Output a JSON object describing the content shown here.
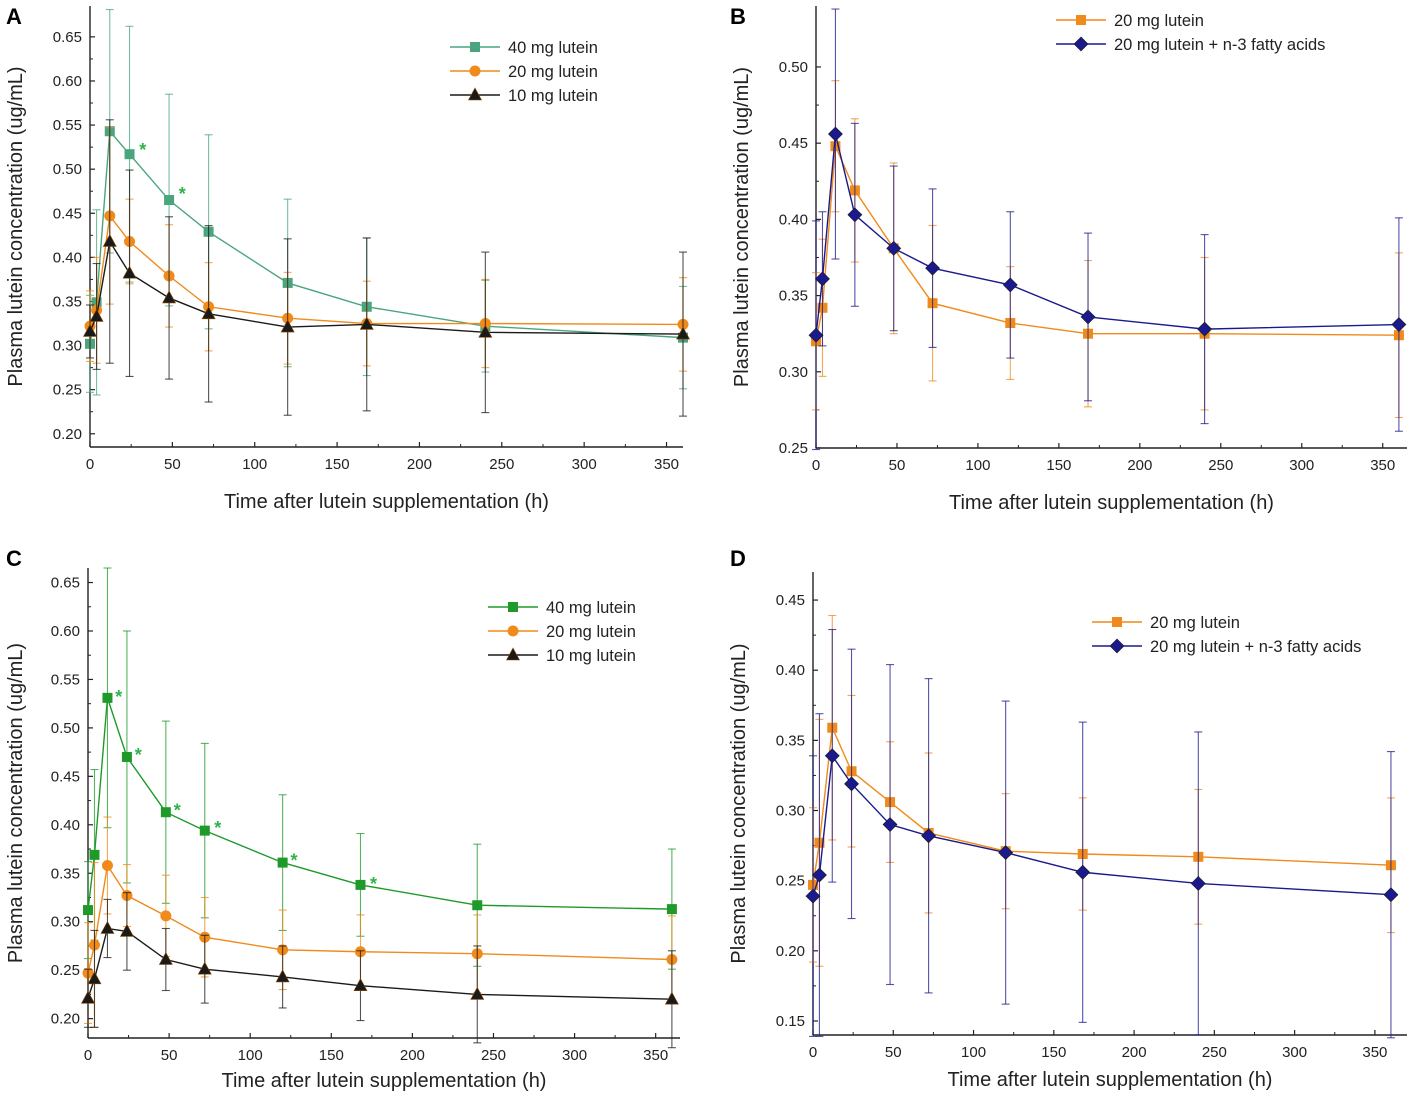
{
  "figure": {
    "x_title": "Time after lutein supplementation (h)",
    "y_title": "Plasma lutein concentration (ug/mL)"
  },
  "colors": {
    "green_a": "#4aa57e",
    "green_c": "#1f9a2a",
    "orange": "#f08a1a",
    "black": "#1a1a1a",
    "navy": "#1a1a8c",
    "star_green": "#2db34a"
  },
  "chart_data": [
    {
      "id": "A",
      "type": "line",
      "panel_label": "A",
      "xlabel": "Time after lutein supplementation (h)",
      "ylabel": "Plasma lutein concentration (ug/mL)",
      "xlim": [
        0,
        360
      ],
      "ylim": [
        0.185,
        0.685
      ],
      "xticks": [
        0,
        50,
        100,
        150,
        200,
        250,
        300,
        350
      ],
      "yticks": [
        0.2,
        0.25,
        0.3,
        0.35,
        0.4,
        0.45,
        0.5,
        0.55,
        0.6,
        0.65
      ],
      "x": [
        0,
        4,
        12,
        24,
        48,
        72,
        120,
        168,
        240,
        360
      ],
      "legend_position": "top-right",
      "series": [
        {
          "name": "40 mg lutein",
          "marker": "square",
          "color": "green_a",
          "values": [
            0.302,
            0.349,
            0.543,
            0.517,
            0.465,
            0.429,
            0.371,
            0.344,
            0.322,
            0.309
          ],
          "errors": [
            0.055,
            0.105,
            0.138,
            0.145,
            0.12,
            0.11,
            0.095,
            0.078,
            0.052,
            0.058
          ]
        },
        {
          "name": "20 mg lutein",
          "marker": "circle",
          "color": "orange",
          "values": [
            0.322,
            0.34,
            0.447,
            0.418,
            0.379,
            0.344,
            0.331,
            0.325,
            0.325,
            0.324
          ],
          "errors": [
            0.04,
            0.06,
            0.1,
            0.048,
            0.058,
            0.05,
            0.052,
            0.048,
            0.05,
            0.053
          ]
        },
        {
          "name": "10 mg lutein",
          "marker": "triangle",
          "color": "black",
          "values": [
            0.316,
            0.333,
            0.418,
            0.382,
            0.354,
            0.336,
            0.321,
            0.324,
            0.315,
            0.313
          ],
          "errors": [
            0.03,
            0.06,
            0.138,
            0.117,
            0.092,
            0.1,
            0.1,
            0.098,
            0.091,
            0.093
          ]
        }
      ],
      "annotations": [
        {
          "text": "*",
          "x": 32,
          "y": 0.524
        },
        {
          "text": "*",
          "x": 56,
          "y": 0.474
        }
      ]
    },
    {
      "id": "B",
      "type": "line",
      "panel_label": "B",
      "xlabel": "Time after lutein supplementation (h)",
      "ylabel": "Plasma lutein concentration (ug/mL)",
      "xlim": [
        0,
        365
      ],
      "ylim": [
        0.25,
        0.54
      ],
      "xticks": [
        0,
        50,
        100,
        150,
        200,
        250,
        300,
        350
      ],
      "yticks": [
        0.25,
        0.3,
        0.35,
        0.4,
        0.45,
        0.5
      ],
      "x": [
        0,
        4,
        12,
        24,
        48,
        72,
        120,
        168,
        240,
        360
      ],
      "legend_position": "top-center",
      "series": [
        {
          "name": "20 mg lutein",
          "marker": "square",
          "color": "orange",
          "values": [
            0.32,
            0.342,
            0.448,
            0.419,
            0.381,
            0.345,
            0.332,
            0.325,
            0.325,
            0.324
          ],
          "errors": [
            0.045,
            0.045,
            0.043,
            0.047,
            0.056,
            0.051,
            0.037,
            0.048,
            0.05,
            0.054
          ]
        },
        {
          "name": "20 mg lutein + n-3 fatty acids",
          "marker": "diamond",
          "color": "navy",
          "values": [
            0.324,
            0.361,
            0.456,
            0.403,
            0.381,
            0.368,
            0.357,
            0.336,
            0.328,
            0.331
          ],
          "errors": [
            0.075,
            0.044,
            0.082,
            0.06,
            0.054,
            0.052,
            0.048,
            0.055,
            0.062,
            0.07
          ]
        }
      ]
    },
    {
      "id": "C",
      "type": "line",
      "panel_label": "C",
      "xlabel": "Time after lutein supplementation (h)",
      "ylabel": "Plasma lutein concentration (ug/mL)",
      "xlim": [
        0,
        365
      ],
      "ylim": [
        0.18,
        0.665
      ],
      "xticks": [
        0,
        50,
        100,
        150,
        200,
        250,
        300,
        350
      ],
      "yticks": [
        0.2,
        0.25,
        0.3,
        0.35,
        0.4,
        0.45,
        0.5,
        0.55,
        0.6,
        0.65
      ],
      "x": [
        0,
        4,
        12,
        24,
        48,
        72,
        120,
        168,
        240,
        360
      ],
      "legend_position": "top-right",
      "series": [
        {
          "name": "40 mg lutein",
          "marker": "square",
          "color": "green_c",
          "values": [
            0.312,
            0.369,
            0.531,
            0.47,
            0.413,
            0.394,
            0.361,
            0.338,
            0.317,
            0.313
          ],
          "errors": [
            0.05,
            0.088,
            0.134,
            0.13,
            0.094,
            0.09,
            0.07,
            0.053,
            0.063,
            0.062
          ]
        },
        {
          "name": "20 mg lutein",
          "marker": "circle",
          "color": "orange",
          "values": [
            0.247,
            0.276,
            0.358,
            0.327,
            0.306,
            0.284,
            0.271,
            0.269,
            0.267,
            0.261
          ],
          "errors": [
            0.052,
            0.085,
            0.05,
            0.032,
            0.042,
            0.041,
            0.041,
            0.038,
            0.04,
            0.045
          ]
        },
        {
          "name": "10 mg lutein",
          "marker": "triangle",
          "color": "black",
          "values": [
            0.221,
            0.241,
            0.293,
            0.29,
            0.261,
            0.251,
            0.243,
            0.234,
            0.225,
            0.22
          ],
          "errors": [
            0.03,
            0.05,
            0.03,
            0.04,
            0.032,
            0.035,
            0.032,
            0.036,
            0.05,
            0.05
          ]
        }
      ],
      "annotations": [
        {
          "text": "*",
          "x": 19,
          "y": 0.534
        },
        {
          "text": "*",
          "x": 31,
          "y": 0.474
        },
        {
          "text": "*",
          "x": 55,
          "y": 0.417
        },
        {
          "text": "*",
          "x": 80,
          "y": 0.399
        },
        {
          "text": "*",
          "x": 127,
          "y": 0.365
        },
        {
          "text": "*",
          "x": 176,
          "y": 0.341
        }
      ]
    },
    {
      "id": "D",
      "type": "line",
      "panel_label": "D",
      "xlabel": "Time after lutein supplementation (h)",
      "ylabel": "Plasma lutein concentration (ug/mL)",
      "xlim": [
        0,
        370
      ],
      "ylim": [
        0.14,
        0.47
      ],
      "xticks": [
        0,
        50,
        100,
        150,
        200,
        250,
        300,
        350
      ],
      "yticks": [
        0.15,
        0.2,
        0.25,
        0.3,
        0.35,
        0.4,
        0.45
      ],
      "x": [
        0,
        4,
        12,
        24,
        48,
        72,
        120,
        168,
        240,
        360
      ],
      "legend_position": "top-right",
      "series": [
        {
          "name": "20 mg lutein",
          "marker": "square",
          "color": "orange",
          "values": [
            0.247,
            0.277,
            0.359,
            0.328,
            0.306,
            0.284,
            0.271,
            0.269,
            0.267,
            0.261
          ],
          "errors": [
            0.055,
            0.088,
            0.08,
            0.054,
            0.043,
            0.057,
            0.041,
            0.04,
            0.048,
            0.048
          ]
        },
        {
          "name": "20 mg lutein + n-3 fatty acids",
          "marker": "diamond",
          "color": "navy",
          "values": [
            0.239,
            0.254,
            0.339,
            0.319,
            0.29,
            0.282,
            0.27,
            0.256,
            0.248,
            0.24
          ],
          "errors": [
            0.1,
            0.115,
            0.09,
            0.096,
            0.114,
            0.112,
            0.108,
            0.107,
            0.108,
            0.102
          ]
        }
      ]
    }
  ]
}
